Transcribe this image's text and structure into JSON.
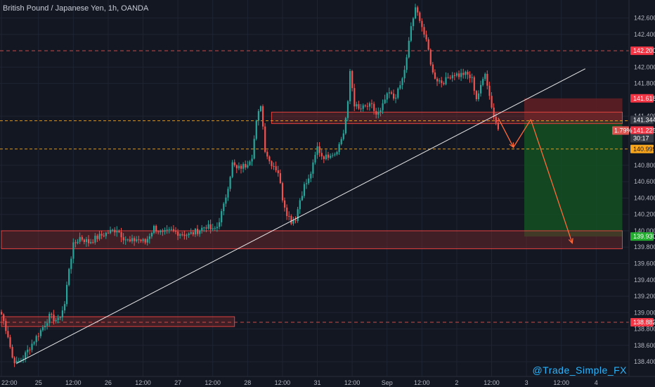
{
  "title": "British Pound / Japanese Yen, 1h, OANDA",
  "watermark": "@Trade_Simple_FX",
  "colors": {
    "background": "#131722",
    "grid": "#1f2433",
    "up": "#26a69a",
    "down": "#ef5350",
    "zone_fill": "#7a2a2e",
    "zone_border": "#e0413f",
    "stop_fill": "#5e1f24",
    "target_fill": "#134c22",
    "level_orange": "#f7a51c",
    "level_red": "#d9534f",
    "trendline": "#ffffff",
    "arrow": "#ff6a3a",
    "badge_red": "#f23645",
    "badge_green": "#22ab2f",
    "badge_orange": "#f7a51c",
    "badge_gray": "#363a45",
    "watermark": "#2ab6ff"
  },
  "chart_data": {
    "type": "candlestick",
    "symbol": "British Pound / Japanese Yen",
    "timeframe": "1h",
    "broker": "OANDA",
    "ylim": [
      138.22,
      142.82
    ],
    "xlim": [
      0,
      290
    ],
    "price_ticks": [
      "142.600",
      "142.400",
      "142.000",
      "141.800",
      "141.400",
      "140.800",
      "140.600",
      "140.400",
      "140.200",
      "140.000",
      "139.800",
      "139.600",
      "139.400",
      "139.200",
      "139.000",
      "138.800",
      "138.600",
      "138.400"
    ],
    "x_ticks": [
      {
        "label": "22:00",
        "x": 0
      },
      {
        "label": "25",
        "x": 17
      },
      {
        "label": "12:00",
        "x": 33
      },
      {
        "label": "26",
        "x": 49
      },
      {
        "label": "12:00",
        "x": 65
      },
      {
        "label": "27",
        "x": 81
      },
      {
        "label": "12:00",
        "x": 97
      },
      {
        "label": "28",
        "x": 113
      },
      {
        "label": "12:00",
        "x": 129
      },
      {
        "label": "31",
        "x": 145
      },
      {
        "label": "12:00",
        "x": 161
      },
      {
        "label": "Sep",
        "x": 177
      },
      {
        "label": "12:00",
        "x": 193
      },
      {
        "label": "2",
        "x": 209
      },
      {
        "label": "12:00",
        "x": 225
      },
      {
        "label": "3",
        "x": 241
      },
      {
        "label": "12:00",
        "x": 257
      },
      {
        "label": "4",
        "x": 273
      }
    ],
    "candle_path": [
      {
        "i": 0,
        "p": 138.98
      },
      {
        "i": 3,
        "p": 138.72
      },
      {
        "i": 5,
        "p": 138.45
      },
      {
        "i": 7,
        "p": 138.38
      },
      {
        "i": 10,
        "p": 138.45
      },
      {
        "i": 14,
        "p": 138.62
      },
      {
        "i": 18,
        "p": 138.78
      },
      {
        "i": 22,
        "p": 138.95
      },
      {
        "i": 26,
        "p": 138.9
      },
      {
        "i": 29,
        "p": 139.1
      },
      {
        "i": 31,
        "p": 139.55
      },
      {
        "i": 33,
        "p": 139.82
      },
      {
        "i": 36,
        "p": 139.92
      },
      {
        "i": 40,
        "p": 139.86
      },
      {
        "i": 44,
        "p": 139.92
      },
      {
        "i": 49,
        "p": 139.98
      },
      {
        "i": 53,
        "p": 140.02
      },
      {
        "i": 56,
        "p": 139.92
      },
      {
        "i": 59,
        "p": 139.86
      },
      {
        "i": 62,
        "p": 139.9
      },
      {
        "i": 66,
        "p": 139.86
      },
      {
        "i": 70,
        "p": 140.04
      },
      {
        "i": 74,
        "p": 139.96
      },
      {
        "i": 78,
        "p": 140.0
      },
      {
        "i": 82,
        "p": 139.97
      },
      {
        "i": 86,
        "p": 139.95
      },
      {
        "i": 90,
        "p": 140.0
      },
      {
        "i": 94,
        "p": 140.06
      },
      {
        "i": 97,
        "p": 140.0
      },
      {
        "i": 99,
        "p": 140.05
      },
      {
        "i": 102,
        "p": 140.3
      },
      {
        "i": 104,
        "p": 140.55
      },
      {
        "i": 106,
        "p": 140.82
      },
      {
        "i": 108,
        "p": 140.75
      },
      {
        "i": 110,
        "p": 140.78
      },
      {
        "i": 112,
        "p": 140.8
      },
      {
        "i": 115,
        "p": 140.92
      },
      {
        "i": 117,
        "p": 141.32
      },
      {
        "i": 119,
        "p": 141.55
      },
      {
        "i": 121,
        "p": 141.0
      },
      {
        "i": 123,
        "p": 140.85
      },
      {
        "i": 125,
        "p": 140.8
      },
      {
        "i": 127,
        "p": 140.72
      },
      {
        "i": 129,
        "p": 140.4
      },
      {
        "i": 131,
        "p": 140.22
      },
      {
        "i": 133,
        "p": 140.12
      },
      {
        "i": 135,
        "p": 140.15
      },
      {
        "i": 137,
        "p": 140.38
      },
      {
        "i": 139,
        "p": 140.55
      },
      {
        "i": 141,
        "p": 140.62
      },
      {
        "i": 143,
        "p": 140.8
      },
      {
        "i": 145,
        "p": 141.02
      },
      {
        "i": 147,
        "p": 140.92
      },
      {
        "i": 149,
        "p": 140.9
      },
      {
        "i": 151,
        "p": 140.95
      },
      {
        "i": 153,
        "p": 140.95
      },
      {
        "i": 155,
        "p": 141.05
      },
      {
        "i": 157,
        "p": 141.2
      },
      {
        "i": 159,
        "p": 141.55
      },
      {
        "i": 160,
        "p": 141.95
      },
      {
        "i": 162,
        "p": 141.55
      },
      {
        "i": 164,
        "p": 141.48
      },
      {
        "i": 166,
        "p": 141.5
      },
      {
        "i": 168,
        "p": 141.52
      },
      {
        "i": 170,
        "p": 141.52
      },
      {
        "i": 172,
        "p": 141.42
      },
      {
        "i": 174,
        "p": 141.45
      },
      {
        "i": 176,
        "p": 141.6
      },
      {
        "i": 178,
        "p": 141.68
      },
      {
        "i": 180,
        "p": 141.62
      },
      {
        "i": 182,
        "p": 141.7
      },
      {
        "i": 184,
        "p": 141.85
      },
      {
        "i": 186,
        "p": 142.1
      },
      {
        "i": 188,
        "p": 142.5
      },
      {
        "i": 190,
        "p": 142.7
      },
      {
        "i": 192,
        "p": 142.6
      },
      {
        "i": 194,
        "p": 142.4
      },
      {
        "i": 196,
        "p": 142.2
      },
      {
        "i": 198,
        "p": 141.92
      },
      {
        "i": 200,
        "p": 141.85
      },
      {
        "i": 202,
        "p": 141.82
      },
      {
        "i": 204,
        "p": 141.84
      },
      {
        "i": 206,
        "p": 141.9
      },
      {
        "i": 208,
        "p": 141.92
      },
      {
        "i": 210,
        "p": 141.9
      },
      {
        "i": 212,
        "p": 141.92
      },
      {
        "i": 214,
        "p": 141.9
      },
      {
        "i": 216,
        "p": 141.85
      },
      {
        "i": 218,
        "p": 141.62
      },
      {
        "i": 220,
        "p": 141.75
      },
      {
        "i": 222,
        "p": 141.95
      },
      {
        "i": 224,
        "p": 141.65
      },
      {
        "i": 226,
        "p": 141.4
      },
      {
        "i": 228,
        "p": 141.24
      }
    ],
    "support_zones": [
      {
        "x1": 124,
        "x2": 285,
        "p_top": 141.45,
        "p_bot": 141.31
      },
      {
        "x1": 0,
        "x2": 285,
        "p_top": 140.0,
        "p_bot": 139.78
      },
      {
        "x1": 0,
        "x2": 107,
        "p_top": 138.95,
        "p_bot": 138.83
      }
    ],
    "levels": [
      {
        "price": 142.2,
        "style": "red"
      },
      {
        "price": 141.344,
        "style": "orange"
      },
      {
        "price": 140.999,
        "style": "orange"
      },
      {
        "price": 138.882,
        "style": "red"
      }
    ],
    "trendline": {
      "x1": 7,
      "p1": 138.38,
      "x2": 268,
      "p2": 141.98
    },
    "position": {
      "x1": 240,
      "x2": 285,
      "entry": 141.344,
      "stop": 141.618,
      "target": 139.93
    },
    "projection": [
      {
        "x": 228,
        "p": 141.38
      },
      {
        "x": 235,
        "p": 141.02
      },
      {
        "x": 243,
        "p": 141.36
      },
      {
        "x": 262,
        "p": 139.85
      }
    ],
    "price_badges": [
      {
        "text": "142.200",
        "price": 142.2,
        "style": "red"
      },
      {
        "text": "141.618",
        "price": 141.618,
        "style": "red"
      },
      {
        "text": "141.344",
        "price": 141.355,
        "style": "gray"
      },
      {
        "text": "141.225",
        "price": 141.225,
        "style": "red"
      },
      {
        "text": "30:17",
        "price": 141.13,
        "style": "gray"
      },
      {
        "text": "140.999",
        "price": 140.999,
        "style": "orange"
      },
      {
        "text": "139.930",
        "price": 139.93,
        "style": "green"
      },
      {
        "text": "138.882",
        "price": 138.882,
        "style": "red"
      }
    ],
    "change_label": {
      "text": "1.79%",
      "price": 141.225
    }
  }
}
